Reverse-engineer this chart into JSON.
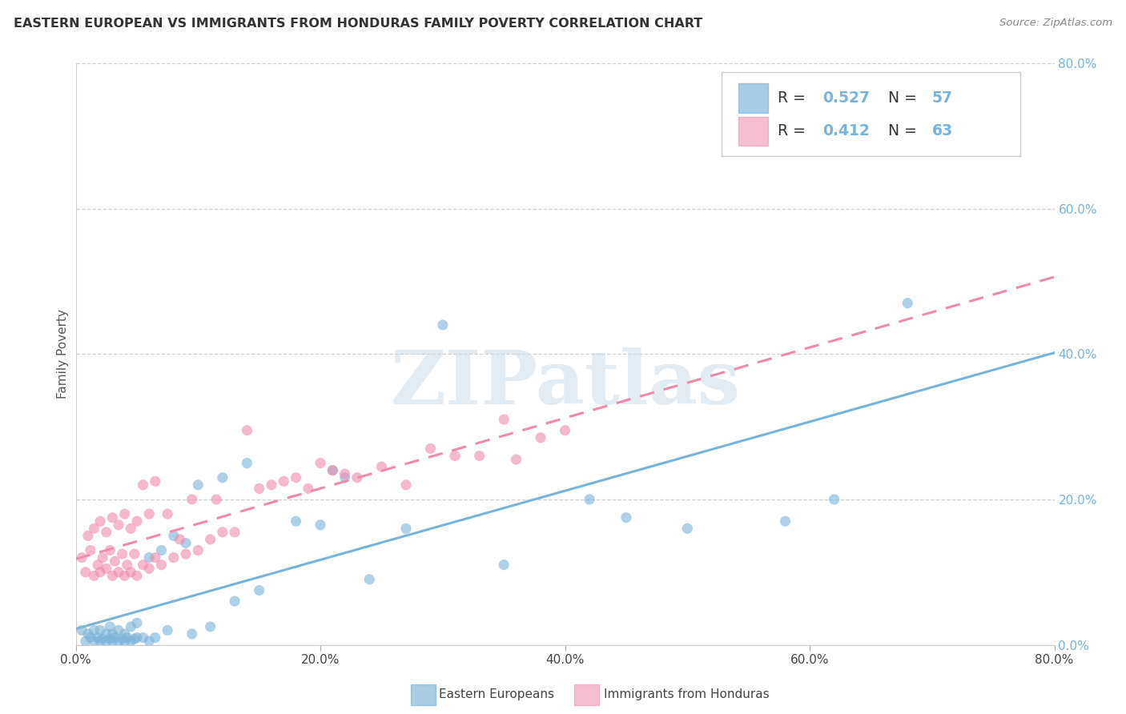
{
  "title": "EASTERN EUROPEAN VS IMMIGRANTS FROM HONDURAS FAMILY POVERTY CORRELATION CHART",
  "source": "Source: ZipAtlas.com",
  "tick_labels": [
    "0.0%",
    "20.0%",
    "40.0%",
    "60.0%",
    "80.0%"
  ],
  "xlim": [
    0.0,
    0.8
  ],
  "ylim": [
    0.0,
    0.8
  ],
  "blue_R": 0.527,
  "blue_N": 57,
  "pink_R": 0.412,
  "pink_N": 63,
  "blue_color": "#7ab3d9",
  "pink_color": "#f08aab",
  "blue_label": "Eastern Europeans",
  "pink_label": "Immigrants from Honduras",
  "blue_scatter_x": [
    0.005,
    0.008,
    0.01,
    0.012,
    0.015,
    0.015,
    0.018,
    0.02,
    0.02,
    0.022,
    0.025,
    0.025,
    0.028,
    0.028,
    0.03,
    0.03,
    0.032,
    0.035,
    0.035,
    0.038,
    0.04,
    0.04,
    0.042,
    0.045,
    0.045,
    0.048,
    0.05,
    0.05,
    0.055,
    0.06,
    0.06,
    0.065,
    0.07,
    0.075,
    0.08,
    0.09,
    0.095,
    0.1,
    0.11,
    0.12,
    0.13,
    0.14,
    0.15,
    0.18,
    0.2,
    0.21,
    0.22,
    0.24,
    0.27,
    0.3,
    0.35,
    0.42,
    0.45,
    0.5,
    0.58,
    0.62,
    0.68
  ],
  "blue_scatter_y": [
    0.02,
    0.005,
    0.015,
    0.01,
    0.005,
    0.02,
    0.01,
    0.005,
    0.02,
    0.008,
    0.005,
    0.015,
    0.008,
    0.025,
    0.005,
    0.015,
    0.01,
    0.005,
    0.02,
    0.008,
    0.005,
    0.015,
    0.01,
    0.005,
    0.025,
    0.008,
    0.01,
    0.03,
    0.01,
    0.005,
    0.12,
    0.01,
    0.13,
    0.02,
    0.15,
    0.14,
    0.015,
    0.22,
    0.025,
    0.23,
    0.06,
    0.25,
    0.075,
    0.17,
    0.165,
    0.24,
    0.23,
    0.09,
    0.16,
    0.44,
    0.11,
    0.2,
    0.175,
    0.16,
    0.17,
    0.2,
    0.47
  ],
  "pink_scatter_x": [
    0.005,
    0.008,
    0.01,
    0.012,
    0.015,
    0.015,
    0.018,
    0.02,
    0.02,
    0.022,
    0.025,
    0.025,
    0.028,
    0.03,
    0.03,
    0.032,
    0.035,
    0.035,
    0.038,
    0.04,
    0.04,
    0.042,
    0.045,
    0.045,
    0.048,
    0.05,
    0.05,
    0.055,
    0.055,
    0.06,
    0.06,
    0.065,
    0.065,
    0.07,
    0.075,
    0.08,
    0.085,
    0.09,
    0.095,
    0.1,
    0.11,
    0.115,
    0.12,
    0.13,
    0.14,
    0.15,
    0.16,
    0.17,
    0.18,
    0.19,
    0.2,
    0.21,
    0.22,
    0.23,
    0.25,
    0.27,
    0.29,
    0.31,
    0.33,
    0.35,
    0.36,
    0.38,
    0.4
  ],
  "pink_scatter_y": [
    0.12,
    0.1,
    0.15,
    0.13,
    0.095,
    0.16,
    0.11,
    0.1,
    0.17,
    0.12,
    0.105,
    0.155,
    0.13,
    0.095,
    0.175,
    0.115,
    0.1,
    0.165,
    0.125,
    0.095,
    0.18,
    0.11,
    0.1,
    0.16,
    0.125,
    0.095,
    0.17,
    0.11,
    0.22,
    0.105,
    0.18,
    0.12,
    0.225,
    0.11,
    0.18,
    0.12,
    0.145,
    0.125,
    0.2,
    0.13,
    0.145,
    0.2,
    0.155,
    0.155,
    0.295,
    0.215,
    0.22,
    0.225,
    0.23,
    0.215,
    0.25,
    0.24,
    0.235,
    0.23,
    0.245,
    0.22,
    0.27,
    0.26,
    0.26,
    0.31,
    0.255,
    0.285,
    0.295
  ],
  "watermark_text": "ZIPatlas",
  "background_color": "#ffffff",
  "grid_color": "#d0d0d0"
}
